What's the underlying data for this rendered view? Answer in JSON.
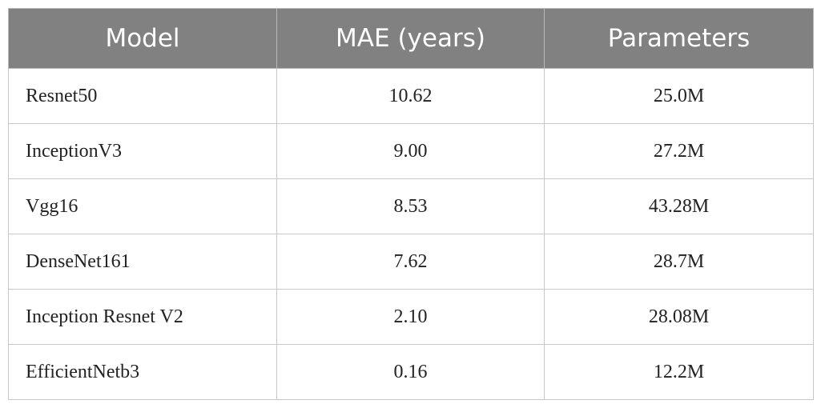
{
  "table": {
    "headers": [
      "Model",
      "MAE (years)",
      "Parameters"
    ],
    "rows": [
      {
        "model": "Resnet50",
        "mae": "10.62",
        "params": "25.0M"
      },
      {
        "model": "InceptionV3",
        "mae": "9.00",
        "params": "27.2M"
      },
      {
        "model": "Vgg16",
        "mae": "8.53",
        "params": "43.28M"
      },
      {
        "model": "DenseNet161",
        "mae": "7.62",
        "params": "28.7M"
      },
      {
        "model": "Inception Resnet V2",
        "mae": "2.10",
        "params": "28.08M"
      },
      {
        "model": "EfficientNetb3",
        "mae": "0.16",
        "params": "12.2M"
      }
    ]
  }
}
